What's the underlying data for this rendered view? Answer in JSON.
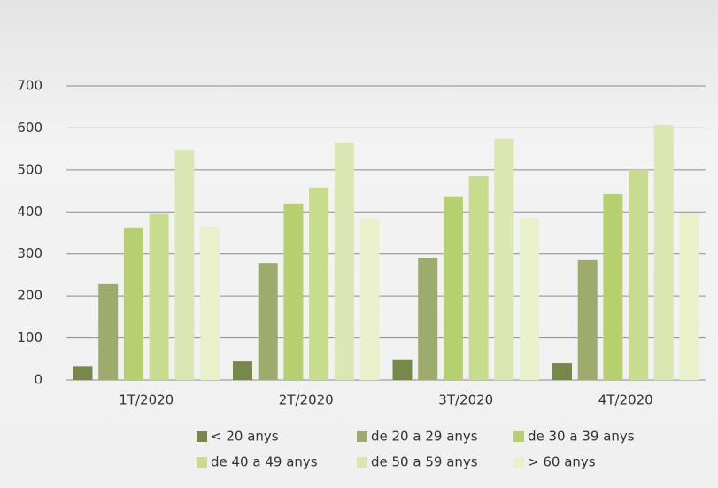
{
  "chart_data": {
    "type": "bar",
    "categories": [
      "1T/2020",
      "2T/2020",
      "3T/2020",
      "4T/2020"
    ],
    "series": [
      {
        "name": "< 20 anys",
        "color": "#77894a",
        "values": [
          33,
          44,
          49,
          40
        ]
      },
      {
        "name": "de 20 a 29 anys",
        "color": "#9dac6c",
        "values": [
          228,
          278,
          291,
          285
        ]
      },
      {
        "name": "de 30 a 39 anys",
        "color": "#b6cf6f",
        "values": [
          363,
          420,
          437,
          443
        ]
      },
      {
        "name": "de 40 a 49 anys",
        "color": "#c8dc8e",
        "values": [
          395,
          458,
          485,
          500
        ]
      },
      {
        "name": "de 50 a 59 anys",
        "color": "#dbe7b2",
        "values": [
          548,
          565,
          574,
          607
        ]
      },
      {
        "name": "> 60 anys",
        "color": "#e9f1cb",
        "values": [
          365,
          384,
          386,
          396
        ]
      }
    ],
    "ylim": [
      0,
      700
    ],
    "yticks": [
      0,
      100,
      200,
      300,
      400,
      500,
      600,
      700
    ],
    "grid": true
  }
}
